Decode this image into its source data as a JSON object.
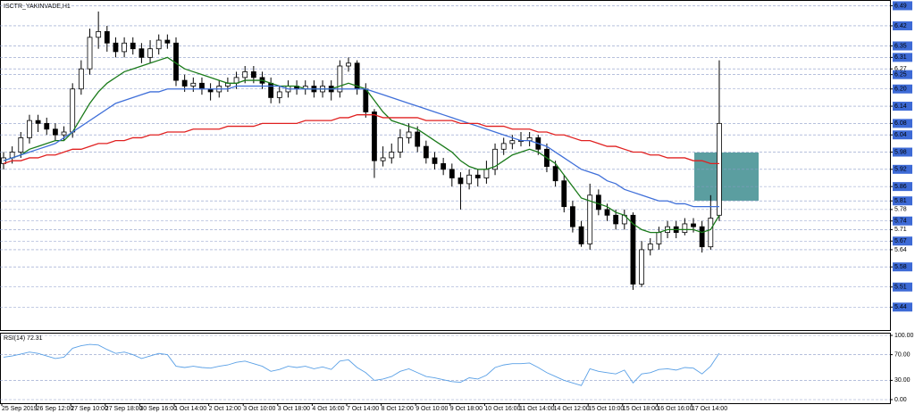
{
  "chart_data": [
    {
      "type": "candlestick",
      "title": "ISCTR_YAKINVADE,H1",
      "categories": [
        "25 Sep 2019",
        null,
        null,
        null,
        "26 Sep 12:00",
        null,
        null,
        null,
        "27 Sep 10:00",
        null,
        null,
        null,
        "27 Sep 18:00",
        null,
        null,
        null,
        "30 Sep 16:00",
        null,
        null,
        null,
        "1 Oct 14:00",
        null,
        null,
        null,
        "2 Oct 12:00",
        null,
        null,
        null,
        "3 Oct 10:00",
        null,
        null,
        null,
        "3 Oct 18:00",
        null,
        null,
        null,
        "4 Oct 16:00",
        null,
        null,
        null,
        "7 Oct 14:00",
        null,
        null,
        null,
        "8 Oct 12:00",
        null,
        null,
        null,
        "9 Oct 10:00",
        null,
        null,
        null,
        "9 Oct 18:00",
        null,
        null,
        null,
        "10 Oct 16:00",
        null,
        null,
        null,
        "11 Oct 14:00",
        null,
        null,
        null,
        "14 Oct 12:00",
        null,
        null,
        null,
        "15 Oct 10:00",
        null,
        null,
        null,
        "15 Oct 18:00",
        null,
        null,
        null,
        "16 Oct 16:00",
        null,
        null,
        null,
        "17 Oct 14:00",
        null,
        null,
        null
      ],
      "open": [
        5.94,
        5.96,
        5.98,
        6.03,
        6.09,
        6.08,
        6.06,
        6.04,
        6.05,
        6.2,
        6.27,
        6.38,
        6.4,
        6.36,
        6.33,
        6.36,
        6.34,
        6.31,
        6.34,
        6.37,
        6.36,
        6.23,
        6.21,
        6.22,
        6.2,
        6.19,
        6.21,
        6.22,
        6.24,
        6.26,
        6.24,
        6.22,
        6.17,
        6.19,
        6.21,
        6.2,
        6.21,
        6.19,
        6.21,
        6.19,
        6.28,
        6.29,
        6.2,
        6.12,
        5.95,
        5.96,
        5.98,
        6.03,
        6.05,
        6.0,
        5.96,
        5.94,
        5.92,
        5.89,
        5.87,
        5.9,
        5.89,
        5.92,
        5.99,
        6.01,
        6.02,
        6.02,
        6.03,
        5.99,
        5.93,
        5.88,
        5.79,
        5.72,
        5.66,
        5.83,
        5.78,
        5.76,
        5.73,
        5.76,
        5.52,
        5.64,
        5.66,
        5.7,
        5.72,
        5.7,
        5.73,
        5.72,
        5.65,
        5.76
      ],
      "high": [
        5.98,
        6.0,
        6.05,
        6.11,
        6.11,
        6.1,
        6.08,
        6.07,
        6.22,
        6.3,
        6.41,
        6.47,
        6.42,
        6.38,
        6.38,
        6.38,
        6.36,
        6.37,
        6.39,
        6.39,
        6.38,
        6.25,
        6.24,
        6.24,
        6.22,
        6.23,
        6.24,
        6.26,
        6.28,
        6.28,
        6.26,
        6.24,
        6.21,
        6.23,
        6.23,
        6.23,
        6.23,
        6.23,
        6.23,
        6.3,
        6.31,
        6.3,
        6.22,
        6.13,
        6.0,
        6.01,
        6.06,
        6.08,
        6.07,
        6.02,
        5.98,
        5.96,
        5.94,
        5.91,
        5.92,
        5.92,
        5.95,
        6.01,
        6.03,
        6.04,
        6.05,
        6.05,
        6.04,
        6.01,
        5.95,
        5.9,
        5.81,
        5.74,
        5.87,
        5.85,
        5.8,
        5.78,
        5.78,
        5.77,
        5.67,
        5.68,
        5.72,
        5.74,
        5.74,
        5.75,
        5.75,
        5.74,
        5.83,
        6.3
      ],
      "low": [
        5.92,
        5.94,
        5.96,
        6.01,
        6.05,
        6.04,
        6.02,
        6.02,
        6.03,
        6.18,
        6.25,
        6.34,
        6.33,
        6.31,
        6.31,
        6.32,
        6.29,
        6.29,
        6.32,
        6.34,
        6.21,
        6.19,
        6.19,
        6.18,
        6.16,
        6.17,
        6.19,
        6.2,
        6.22,
        6.22,
        6.2,
        6.15,
        6.15,
        6.17,
        6.18,
        6.18,
        6.17,
        6.17,
        6.16,
        6.17,
        6.26,
        6.18,
        6.1,
        5.89,
        5.93,
        5.94,
        5.96,
        6.01,
        5.98,
        5.94,
        5.92,
        5.9,
        5.86,
        5.78,
        5.85,
        5.86,
        5.87,
        5.9,
        5.97,
        5.99,
        6.0,
        6.0,
        5.97,
        5.91,
        5.86,
        5.77,
        5.7,
        5.65,
        5.64,
        5.76,
        5.74,
        5.71,
        5.71,
        5.5,
        5.51,
        5.62,
        5.64,
        5.68,
        5.68,
        5.69,
        5.7,
        5.63,
        5.64,
        5.74
      ],
      "close": [
        5.96,
        5.98,
        6.03,
        6.09,
        6.08,
        6.06,
        6.04,
        6.05,
        6.2,
        6.27,
        6.38,
        6.4,
        6.36,
        6.33,
        6.36,
        6.34,
        6.31,
        6.34,
        6.37,
        6.36,
        6.23,
        6.21,
        6.22,
        6.2,
        6.19,
        6.21,
        6.22,
        6.24,
        6.26,
        6.24,
        6.22,
        6.17,
        6.19,
        6.21,
        6.2,
        6.21,
        6.19,
        6.21,
        6.19,
        6.28,
        6.29,
        6.2,
        6.12,
        5.95,
        5.96,
        5.98,
        6.03,
        6.05,
        6.0,
        5.96,
        5.94,
        5.92,
        5.89,
        5.87,
        5.9,
        5.89,
        5.92,
        5.99,
        6.01,
        6.02,
        6.02,
        6.03,
        5.99,
        5.93,
        5.88,
        5.79,
        5.72,
        5.66,
        5.83,
        5.78,
        5.76,
        5.73,
        5.76,
        5.52,
        5.64,
        5.66,
        5.7,
        5.72,
        5.7,
        5.73,
        5.72,
        5.65,
        5.75,
        6.08
      ],
      "series": [
        {
          "color": "#1a7a1a",
          "values": [
            5.95,
            5.96,
            5.97,
            5.99,
            6.0,
            6.01,
            6.02,
            6.02,
            6.05,
            6.1,
            6.15,
            6.19,
            6.22,
            6.24,
            6.26,
            6.27,
            6.28,
            6.29,
            6.3,
            6.31,
            6.29,
            6.27,
            6.26,
            6.25,
            6.24,
            6.23,
            6.22,
            6.22,
            6.23,
            6.23,
            6.23,
            6.22,
            6.21,
            6.21,
            6.21,
            6.2,
            6.2,
            6.2,
            6.2,
            6.21,
            6.22,
            6.21,
            6.2,
            6.16,
            6.12,
            6.09,
            6.08,
            6.07,
            6.06,
            6.04,
            6.02,
            6.0,
            5.98,
            5.95,
            5.93,
            5.92,
            5.92,
            5.93,
            5.95,
            5.97,
            5.98,
            5.99,
            5.98,
            5.96,
            5.94,
            5.9,
            5.86,
            5.82,
            5.81,
            5.8,
            5.79,
            5.77,
            5.76,
            5.73,
            5.71,
            5.7,
            5.7,
            5.71,
            5.71,
            5.71,
            5.71,
            5.7,
            5.71,
            5.76
          ]
        },
        {
          "color": "#3f6fd9",
          "values": [
            5.95,
            5.96,
            5.97,
            5.98,
            5.99,
            6.0,
            6.01,
            6.03,
            6.05,
            6.07,
            6.09,
            6.11,
            6.13,
            6.15,
            6.16,
            6.17,
            6.18,
            6.19,
            6.19,
            6.2,
            6.2,
            6.2,
            6.2,
            6.2,
            6.2,
            6.2,
            6.2,
            6.21,
            6.21,
            6.21,
            6.21,
            6.21,
            6.21,
            6.2,
            6.2,
            6.2,
            6.2,
            6.2,
            6.2,
            6.2,
            6.2,
            6.2,
            6.2,
            6.19,
            6.18,
            6.17,
            6.16,
            6.15,
            6.14,
            6.13,
            6.12,
            6.11,
            6.1,
            6.09,
            6.08,
            6.07,
            6.06,
            6.05,
            6.04,
            6.03,
            6.02,
            6.02,
            6.01,
            6.0,
            5.98,
            5.96,
            5.94,
            5.92,
            5.91,
            5.9,
            5.88,
            5.87,
            5.85,
            5.84,
            5.83,
            5.82,
            5.81,
            5.81,
            5.8,
            5.8,
            5.79,
            5.79,
            5.79,
            5.79
          ]
        },
        {
          "color": "#e02020",
          "values": [
            5.94,
            5.95,
            5.95,
            5.96,
            5.96,
            5.97,
            5.97,
            5.98,
            5.99,
            5.99,
            6.0,
            6.01,
            6.01,
            6.02,
            6.02,
            6.03,
            6.03,
            6.04,
            6.04,
            6.05,
            6.05,
            6.05,
            6.06,
            6.06,
            6.06,
            6.06,
            6.07,
            6.07,
            6.07,
            6.07,
            6.08,
            6.08,
            6.08,
            6.08,
            6.08,
            6.09,
            6.09,
            6.09,
            6.09,
            6.1,
            6.1,
            6.11,
            6.11,
            6.11,
            6.1,
            6.1,
            6.1,
            6.1,
            6.1,
            6.09,
            6.09,
            6.09,
            6.09,
            6.08,
            6.08,
            6.08,
            6.07,
            6.07,
            6.07,
            6.06,
            6.06,
            6.06,
            6.05,
            6.05,
            6.04,
            6.04,
            6.03,
            6.02,
            6.02,
            6.01,
            6.0,
            6.0,
            5.99,
            5.98,
            5.98,
            5.97,
            5.97,
            5.96,
            5.96,
            5.96,
            5.95,
            5.95,
            5.94,
            5.94
          ]
        }
      ],
      "ylim": [
        5.36,
        6.51
      ],
      "yticks": [
        {
          "value": 6.27,
          "label": "6.27"
        },
        {
          "value": 5.78,
          "label": "5.78"
        },
        {
          "value": 5.71,
          "label": "5.71"
        },
        {
          "value": 5.64,
          "label": "5.64"
        }
      ],
      "levels": [
        {
          "value": 6.49,
          "label": "6.49"
        },
        {
          "value": 6.42,
          "label": "6.42"
        },
        {
          "value": 6.35,
          "label": "6.35"
        },
        {
          "value": 6.31,
          "label": "6.31"
        },
        {
          "value": 6.25,
          "label": "6.25"
        },
        {
          "value": 6.2,
          "label": "6.20"
        },
        {
          "value": 6.14,
          "label": "6.14"
        },
        {
          "value": 6.08,
          "label": "6.08"
        },
        {
          "value": 6.04,
          "label": "6.04"
        },
        {
          "value": 5.98,
          "label": "5.98"
        },
        {
          "value": 5.92,
          "label": "5.92"
        },
        {
          "value": 5.86,
          "label": "5.86"
        },
        {
          "value": 5.81,
          "label": "5.81"
        },
        {
          "value": 5.74,
          "label": "5.74"
        },
        {
          "value": 5.67,
          "label": "5.67"
        },
        {
          "value": 5.58,
          "label": "5.58"
        },
        {
          "value": 5.51,
          "label": "5.51"
        },
        {
          "value": 5.44,
          "label": "5.44"
        }
      ],
      "grid": true
    },
    {
      "type": "line",
      "title": "RSI(14) 72.31",
      "color": "#5aa0e6",
      "values": [
        66,
        68,
        71,
        74,
        72,
        68,
        64,
        66,
        80,
        84,
        86,
        85,
        78,
        72,
        74,
        70,
        64,
        68,
        72,
        70,
        52,
        50,
        52,
        50,
        49,
        52,
        54,
        58,
        60,
        56,
        52,
        44,
        47,
        52,
        50,
        52,
        48,
        51,
        47,
        60,
        62,
        50,
        42,
        30,
        32,
        36,
        44,
        48,
        42,
        36,
        34,
        31,
        28,
        27,
        34,
        32,
        38,
        50,
        54,
        56,
        56,
        57,
        50,
        42,
        36,
        30,
        26,
        22,
        48,
        44,
        42,
        40,
        46,
        26,
        40,
        42,
        47,
        48,
        46,
        50,
        49,
        40,
        52,
        72.31
      ],
      "ylim": [
        0,
        100
      ],
      "yticks": [
        {
          "value": 100,
          "label": "100.00"
        },
        {
          "value": 70,
          "label": "70.00"
        },
        {
          "value": 30,
          "label": "30.00"
        },
        {
          "value": 0,
          "label": "0.00"
        }
      ],
      "grid": true
    }
  ]
}
